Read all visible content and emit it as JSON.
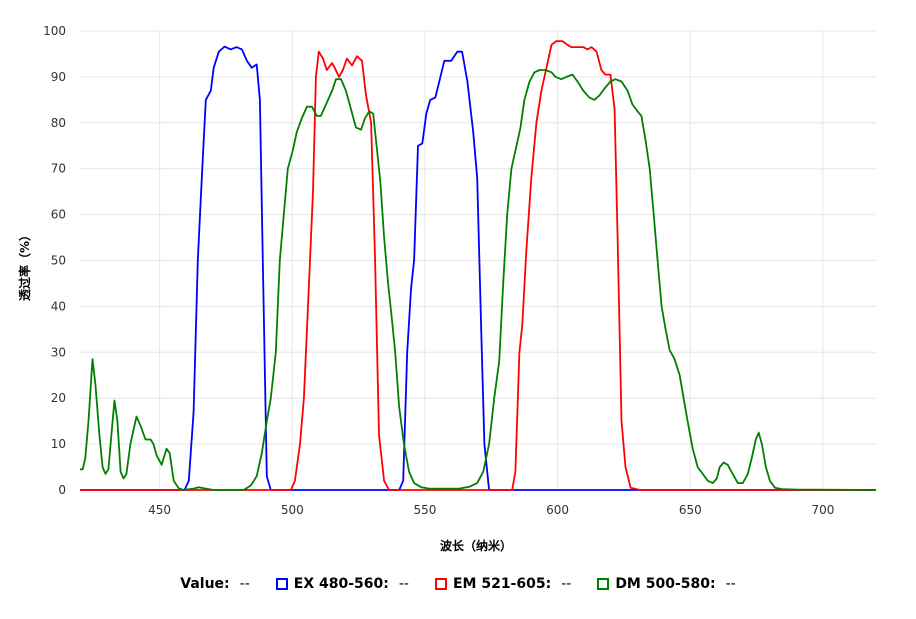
{
  "chart_data": {
    "type": "line",
    "title": "",
    "xlabel": "波长（纳米）",
    "ylabel": "透过率（%）",
    "xlim": [
      420,
      720
    ],
    "ylim": [
      0,
      100
    ],
    "xticks": [
      450,
      500,
      550,
      600,
      650,
      700
    ],
    "yticks": [
      0,
      10,
      20,
      30,
      40,
      50,
      60,
      70,
      80,
      90,
      100
    ],
    "grid": true,
    "legend_placement": "bottom",
    "legend_value_label": "Value:",
    "legend_value": "--",
    "series": [
      {
        "name": "EX 480-560:",
        "value": "--",
        "color": "#0000ff",
        "x": [
          420,
          459.4,
          461,
          462.8,
          464.4,
          465.9,
          467.4,
          469.3,
          470.4,
          472.3,
          474.5,
          476.8,
          479,
          481,
          482.9,
          484.7,
          486.6,
          487.8,
          488.9,
          490.4,
          491.9,
          540.3,
          541.8,
          543.3,
          544.8,
          545.9,
          547.4,
          549,
          550.5,
          552,
          553.9,
          555.4,
          557.3,
          559.9,
          562.2,
          564,
          566,
          568.2,
          569.7,
          571.2,
          572.4,
          574.2,
          720
        ],
        "y": [
          0,
          0,
          2,
          17,
          50,
          68,
          85,
          87,
          92,
          95.5,
          96.6,
          96,
          96.5,
          96,
          93.5,
          92,
          92.7,
          85,
          50,
          3,
          0,
          0,
          2,
          30,
          44,
          50,
          75,
          75.5,
          82,
          85,
          85.5,
          89,
          93.5,
          93.5,
          95.5,
          95.5,
          89,
          78,
          68,
          35,
          10,
          0,
          0
        ]
      },
      {
        "name": "EM 521-605:",
        "value": "--",
        "color": "#ff0000",
        "x": [
          420,
          499.5,
          501,
          502.9,
          504.4,
          506.3,
          507.8,
          508.9,
          510,
          511.6,
          513,
          515,
          516,
          517.6,
          519.1,
          520.6,
          522.5,
          524.4,
          526.3,
          527.8,
          529.7,
          531.2,
          532.7,
          534.6,
          536.5,
          582.9,
          584.1,
          585.6,
          586.7,
          588.2,
          590.1,
          592,
          593.9,
          595.8,
          597.7,
          599.5,
          601.8,
          603.7,
          605.2,
          607.5,
          609.7,
          611.3,
          612.8,
          614.7,
          616.5,
          618,
          619.9,
          621.5,
          622.6,
          624.1,
          625.6,
          627.5,
          631,
          720
        ],
        "y": [
          0,
          0,
          2,
          10,
          20,
          45,
          65,
          90,
          95.5,
          94,
          91.5,
          93,
          92,
          90,
          91.5,
          94,
          92.5,
          94.5,
          93.5,
          86,
          80,
          50,
          12,
          2,
          0,
          0,
          4,
          30,
          36,
          52,
          68,
          80,
          87,
          92,
          97,
          97.8,
          97.8,
          97,
          96.5,
          96.5,
          96.5,
          96,
          96.5,
          95.5,
          91.5,
          90.5,
          90.5,
          83,
          55,
          15,
          5,
          0.5,
          0,
          0
        ]
      },
      {
        "name": "DM 500-580:",
        "value": "--",
        "color": "#008000",
        "x": [
          419.8,
          421,
          422,
          423.2,
          424.7,
          425.8,
          427.3,
          428.5,
          429.6,
          430.7,
          432.3,
          433,
          434.1,
          435.3,
          436.4,
          437.5,
          439,
          441.3,
          442.8,
          444.7,
          446.6,
          447.7,
          448.9,
          450.8,
          452.6,
          453.8,
          455.3,
          457.2,
          459,
          462.8,
          464.7,
          466.6,
          470.4,
          481.7,
          484.4,
          486.6,
          488.5,
          490.4,
          491.9,
          493.8,
          495.3,
          496.8,
          498.3,
          500.2,
          501.7,
          503.6,
          505.5,
          507.4,
          509.3,
          510.8,
          512.7,
          515,
          516.5,
          518.4,
          520.2,
          522.1,
          524,
          525.9,
          527.4,
          529,
          530.5,
          531.6,
          533.2,
          534.6,
          536.1,
          537.6,
          538.8,
          540.3,
          542.1,
          544,
          545.9,
          548.6,
          551.6,
          563,
          566.7,
          569.7,
          572,
          574.2,
          576.1,
          578,
          579.5,
          581,
          582.6,
          584.5,
          586,
          587.5,
          589.4,
          591.3,
          593.2,
          595.4,
          597.7,
          599.2,
          601.4,
          603.3,
          605.6,
          607.5,
          609.7,
          612,
          613.9,
          615.8,
          617.7,
          619.9,
          621.8,
          624.1,
          626.4,
          628.2,
          630.1,
          631.6,
          633.2,
          634.7,
          636.2,
          637.7,
          639.2,
          640.7,
          642.2,
          644.1,
          646,
          647.5,
          649,
          650.9,
          652.8,
          654.7,
          656.6,
          658.5,
          660,
          661.1,
          662.6,
          664.1,
          666,
          667.9,
          669.8,
          671.7,
          673.2,
          674.7,
          675.8,
          677,
          678.5,
          680,
          681.9,
          684.5,
          689.4,
          720
        ],
        "y": [
          4.5,
          4.5,
          7,
          15,
          28.5,
          23,
          12,
          5,
          3.5,
          4.5,
          15,
          19.5,
          15,
          4,
          2.5,
          3.5,
          10,
          16,
          14,
          11,
          11,
          10,
          7.5,
          5.5,
          9,
          8,
          2,
          0.4,
          0,
          0.3,
          0.6,
          0.4,
          0,
          0,
          1,
          3,
          8,
          15,
          20,
          30,
          50,
          60,
          70,
          74,
          78,
          81,
          83.5,
          83.5,
          81.5,
          81.5,
          84,
          87,
          89.5,
          89.5,
          87,
          83,
          79,
          78.5,
          81,
          82.5,
          82,
          76,
          67,
          55,
          45,
          37,
          30,
          18,
          10,
          4,
          1.5,
          0.6,
          0.3,
          0.3,
          0.7,
          1.5,
          4,
          10,
          20,
          28,
          45,
          60,
          70,
          75,
          79,
          85,
          89,
          91,
          91.5,
          91.5,
          91,
          90,
          89.5,
          90,
          90.5,
          89,
          87,
          85.5,
          85,
          86,
          87.5,
          89,
          89.5,
          89,
          87,
          84,
          82.5,
          81.5,
          76,
          70,
          60,
          50,
          40,
          35,
          30.5,
          28.5,
          25,
          20,
          15,
          9,
          5,
          3.5,
          2,
          1.5,
          2.5,
          5,
          6,
          5.5,
          3.5,
          1.5,
          1.5,
          3.5,
          7,
          11,
          12.5,
          10,
          5,
          2,
          0.5,
          0.2,
          0.1,
          0
        ]
      }
    ]
  }
}
